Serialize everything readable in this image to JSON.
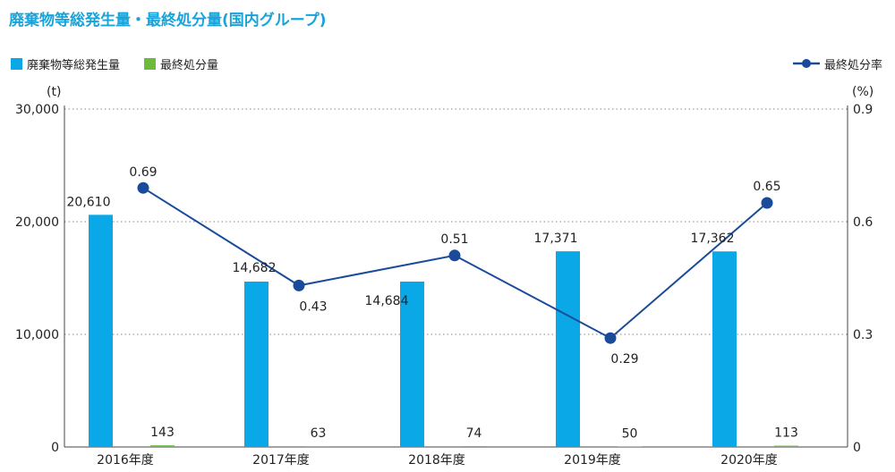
{
  "title": "廃棄物等総発生量・最終処分量(国内グループ)",
  "colors": {
    "total": "#0aa8e6",
    "final": "#6cbb3c",
    "rate": "#1a4b9a",
    "title": "#1aa3d9"
  },
  "chart_data": {
    "type": "bar",
    "categories": [
      "2016年度",
      "2017年度",
      "2018年度",
      "2019年度",
      "2020年度"
    ],
    "series": [
      {
        "name": "廃棄物等総発生量",
        "type": "bar",
        "axis": "left",
        "values": [
          20610,
          14682,
          14684,
          17371,
          17362
        ],
        "labels": [
          "20,610",
          "14,682",
          "14,684",
          "17,371",
          "17,362"
        ]
      },
      {
        "name": "最終処分量",
        "type": "bar",
        "axis": "left",
        "values": [
          143,
          63,
          74,
          50,
          113
        ],
        "labels": [
          "143",
          "63",
          "74",
          "50",
          "113"
        ]
      },
      {
        "name": "最終処分率",
        "type": "line",
        "axis": "right",
        "values": [
          0.69,
          0.43,
          0.51,
          0.29,
          0.65
        ],
        "labels": [
          "0.69",
          "0.43",
          "0.51",
          "0.29",
          "0.65"
        ]
      }
    ],
    "y_left": {
      "unit": "(t)",
      "range": [
        0,
        30000
      ],
      "ticks": [
        "0",
        "10,000",
        "20,000",
        "30,000"
      ]
    },
    "y_right": {
      "unit": "(%)",
      "range": [
        0,
        0.9
      ],
      "ticks": [
        "0",
        "0.3",
        "0.6",
        "0.9"
      ]
    },
    "grid": true,
    "legend": "top"
  }
}
